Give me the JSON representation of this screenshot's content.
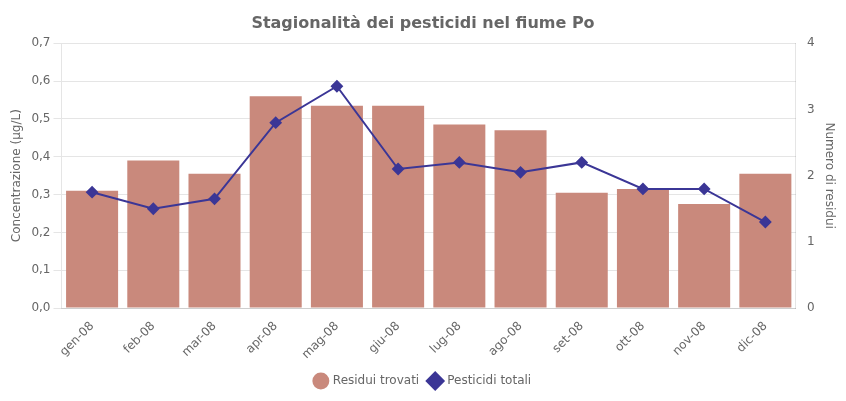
{
  "chart_data": {
    "type": "bar",
    "title": "Stagionalità dei pesticidi nel fiume Po",
    "categories": [
      "gen-08",
      "feb-08",
      "mar-08",
      "apr-08",
      "mag-08",
      "giu-08",
      "lug-08",
      "ago-08",
      "set-08",
      "ott-08",
      "nov-08",
      "dic-08"
    ],
    "series": [
      {
        "name": "Residui trovati",
        "type": "bar",
        "color": "#C9897C",
        "values": [
          0.31,
          0.39,
          0.355,
          0.56,
          0.535,
          0.535,
          0.485,
          0.47,
          0.305,
          0.315,
          0.275,
          0.355
        ]
      },
      {
        "name": "Pesticidi totali",
        "type": "line",
        "color": "#3B3696",
        "marker": "diamond",
        "axis": "y2",
        "values": [
          1.75,
          1.5,
          1.65,
          2.8,
          3.35,
          2.1,
          2.2,
          2.05,
          2.2,
          1.8,
          1.8,
          1.3
        ]
      }
    ],
    "ylabel": "Concentrazione (μg/L)",
    "y2label": "Numero di residui",
    "ylim": [
      0,
      0.7
    ],
    "yticks": [
      {
        "value": 0,
        "label": "0,0"
      },
      {
        "value": 0.1,
        "label": "0,1"
      },
      {
        "value": 0.2,
        "label": "0,2"
      },
      {
        "value": 0.3,
        "label": "0,3"
      },
      {
        "value": 0.4,
        "label": "0,4"
      },
      {
        "value": 0.5,
        "label": "0,5"
      },
      {
        "value": 0.6,
        "label": "0,6"
      },
      {
        "value": 0.7,
        "label": "0,7"
      }
    ],
    "y2lim": [
      0,
      4
    ],
    "y2ticks": [
      0,
      1,
      2,
      3,
      4
    ],
    "grid": true,
    "legend": "bottom"
  }
}
